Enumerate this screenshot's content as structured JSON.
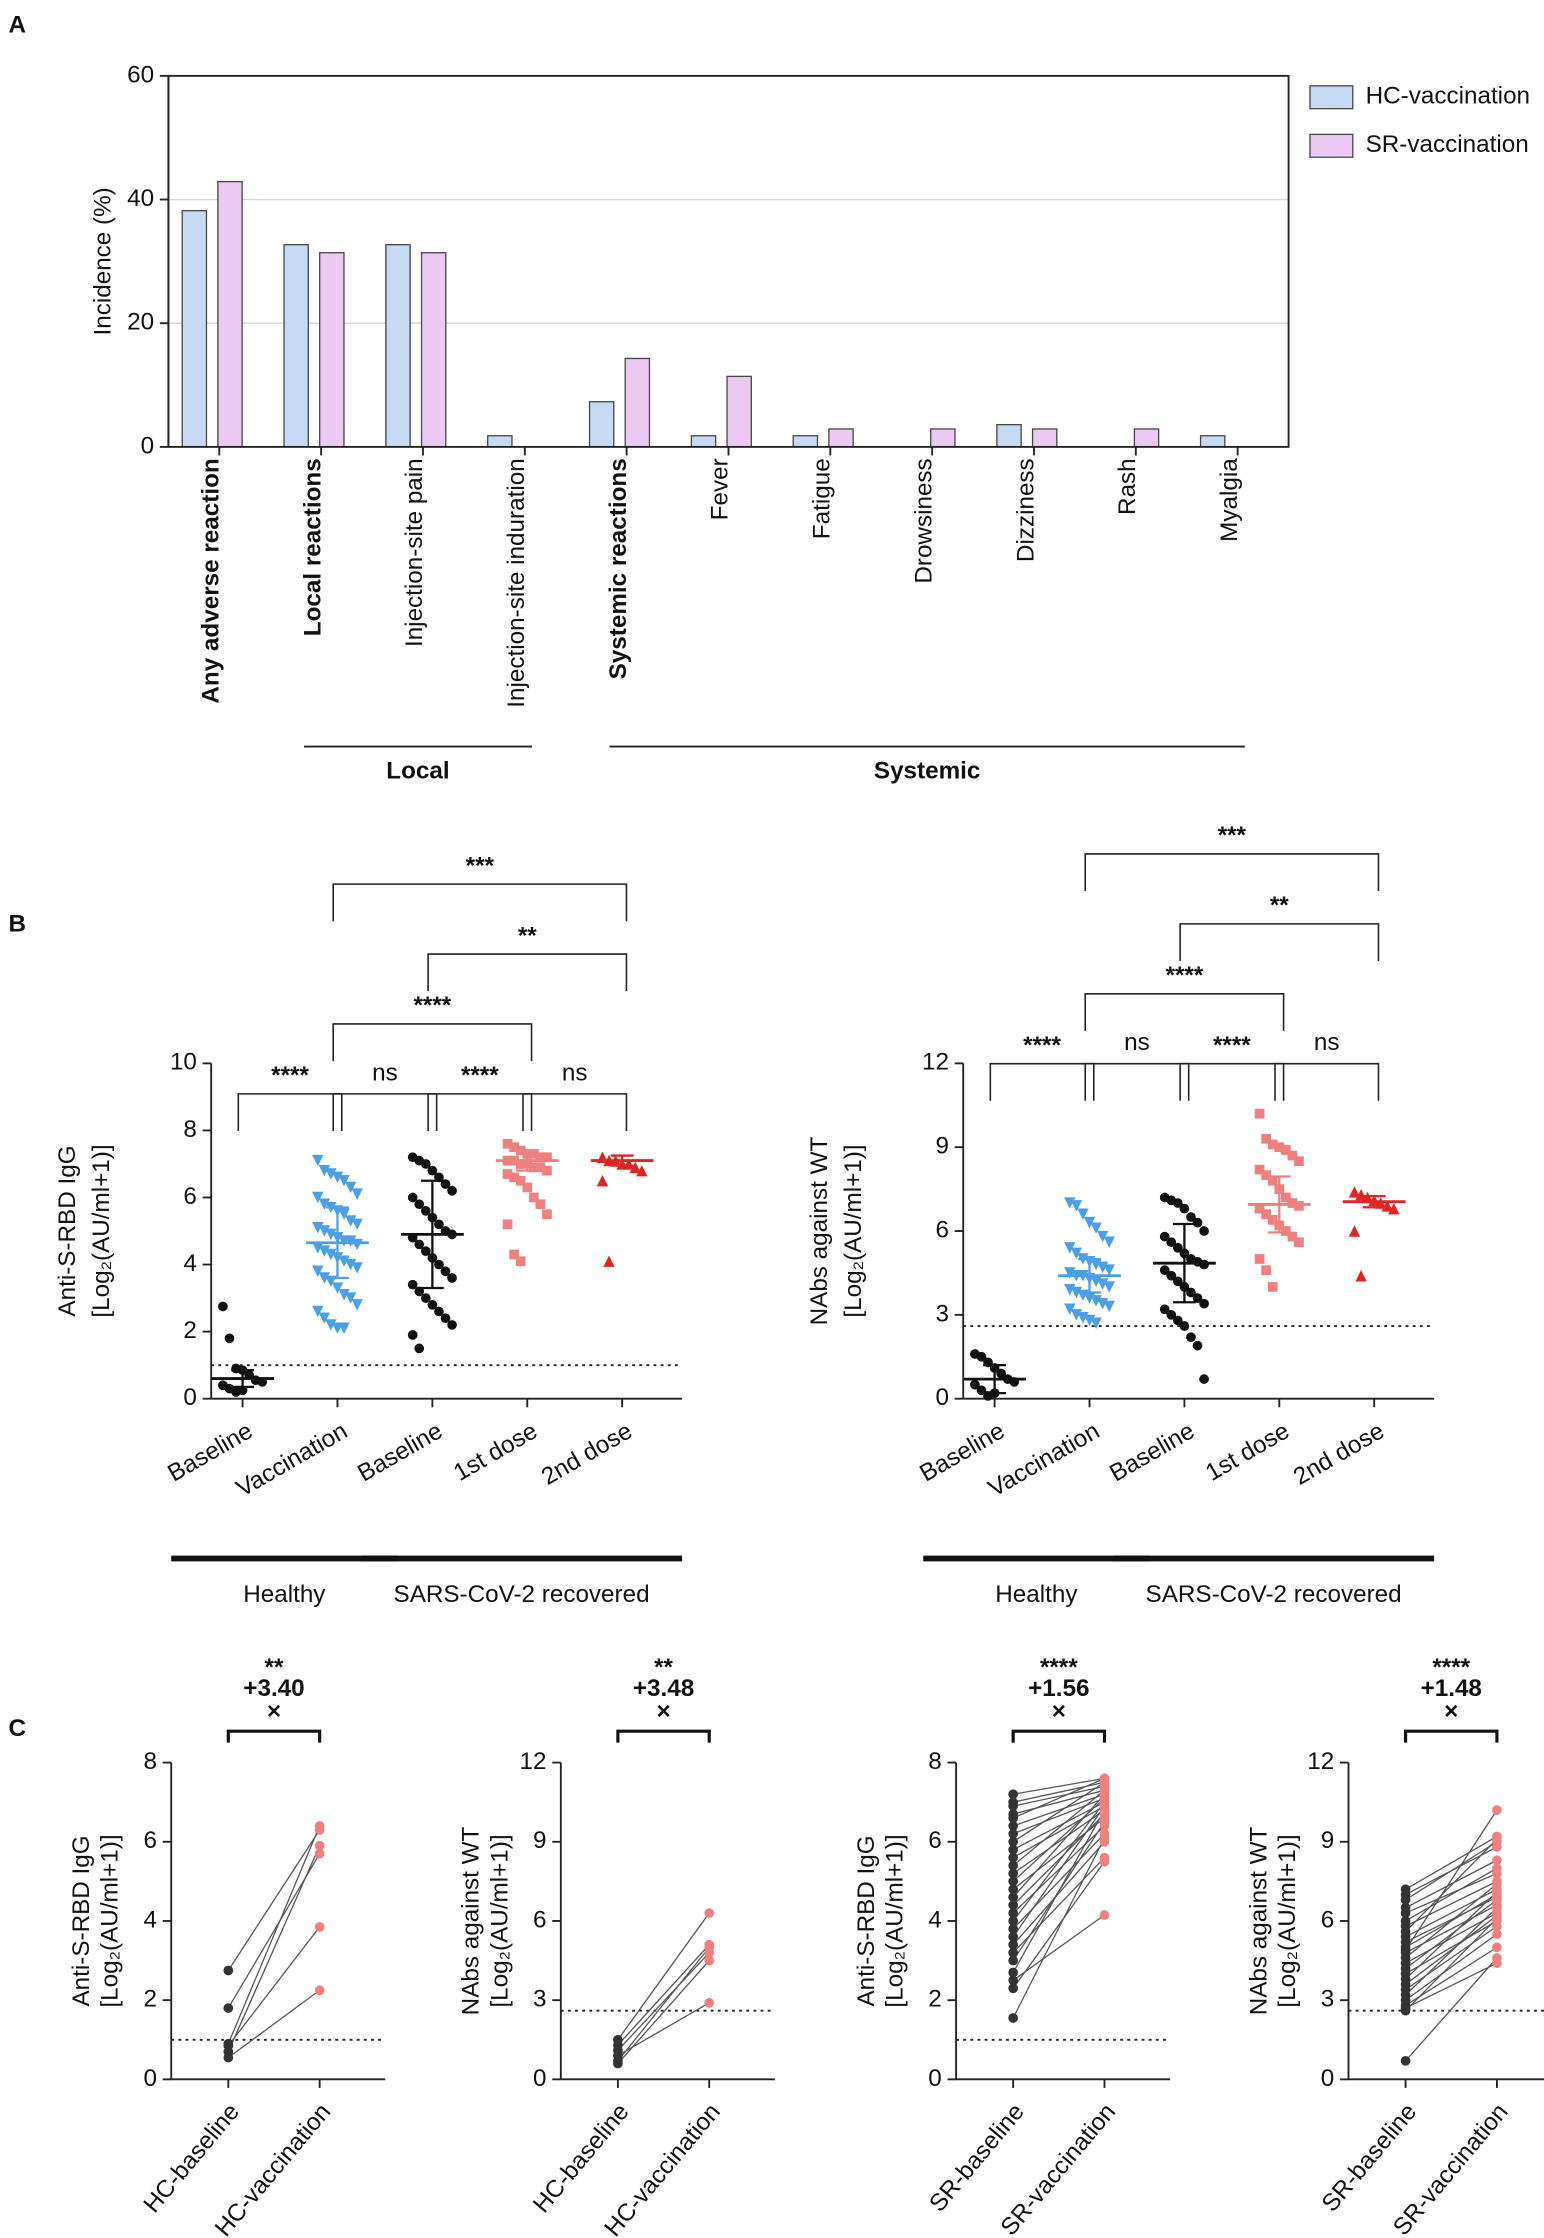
{
  "chart_data": [
    {
      "type": "bar",
      "panel": "A",
      "ylabel": "Incidence (%)",
      "categories": [
        "Any adverse reaction",
        "Local reactions",
        "Injection-site pain",
        "Injection-site induration",
        "Systemic reactions",
        "Fever",
        "Fatigue",
        "Drowsiness",
        "Dizziness",
        "Rash",
        "Myalgia"
      ],
      "category_bold": [
        true,
        true,
        false,
        false,
        true,
        false,
        false,
        false,
        false,
        false,
        false
      ],
      "groups": [
        {
          "label": "Local",
          "categories": [
            1,
            2,
            3
          ]
        },
        {
          "label": "Systemic",
          "categories": [
            4,
            5,
            6,
            7,
            8,
            9,
            10
          ]
        }
      ],
      "series": [
        {
          "name": "HC-vaccination",
          "color": "#c6dbf3",
          "values": [
            38.2,
            32.7,
            32.7,
            1.8,
            7.3,
            1.8,
            1.8,
            0,
            3.6,
            0,
            1.8
          ]
        },
        {
          "name": "SR-vaccination",
          "color": "#ecc9f2",
          "values": [
            42.9,
            31.4,
            31.4,
            0,
            14.3,
            11.4,
            2.9,
            2.9,
            2.9,
            2.9,
            0
          ]
        }
      ],
      "ylim": [
        0,
        60
      ],
      "yticks": [
        0,
        20,
        40,
        60
      ],
      "grid": true,
      "legend": "right"
    },
    {
      "type": "dot",
      "panel": "B",
      "ylabel": [
        "Anti-S-RBD IgG",
        "[Log₂(AU/ml+1)]"
      ],
      "categories": [
        "Baseline",
        "Vaccination",
        "Baseline",
        "1st dose",
        "2nd dose"
      ],
      "colors": [
        "#111111",
        "#4b9fe6",
        "#111111",
        "#f07f7f",
        "#e02424"
      ],
      "markers": [
        "circle",
        "triangle-down",
        "circle",
        "square",
        "triangle-up"
      ],
      "points": [
        [
          2.75,
          1.8,
          0.9,
          0.85,
          0.7,
          0.55,
          0.5,
          0.4,
          0.3,
          0.2,
          0.25
        ],
        [
          7.1,
          6.8,
          6.7,
          6.6,
          6.5,
          6.3,
          6.1,
          6.0,
          5.8,
          5.7,
          5.6,
          5.5,
          5.3,
          5.2,
          5.1,
          5.0,
          4.9,
          4.8,
          4.7,
          4.7,
          4.6,
          4.5,
          4.4,
          4.3,
          4.2,
          4.1,
          4.0,
          3.9,
          3.8,
          3.6,
          3.5,
          3.3,
          3.1,
          3.0,
          2.8,
          2.6,
          2.4,
          2.2,
          2.1,
          2.1
        ],
        [
          7.2,
          7.1,
          7.0,
          6.8,
          6.6,
          6.4,
          6.2,
          6.0,
          5.8,
          5.6,
          5.4,
          5.2,
          5.0,
          4.9,
          4.8,
          4.6,
          4.4,
          4.2,
          4.0,
          3.8,
          3.6,
          3.4,
          3.2,
          3.0,
          2.8,
          2.6,
          2.4,
          2.2,
          1.9,
          1.5
        ],
        [
          7.6,
          7.5,
          7.4,
          7.3,
          7.3,
          7.2,
          7.2,
          7.1,
          7.1,
          7.0,
          7.0,
          6.9,
          6.9,
          6.8,
          6.7,
          6.6,
          6.5,
          6.3,
          6.0,
          5.8,
          5.5,
          5.2,
          4.3,
          4.1
        ],
        [
          7.2,
          7.1,
          7.1,
          7.0,
          7.0,
          6.9,
          6.8,
          6.5,
          4.1
        ]
      ],
      "center": [
        0.6,
        4.65,
        4.9,
        7.1,
        7.1
      ],
      "spread": [
        0.25,
        1.05,
        1.6,
        0.3,
        0.15
      ],
      "reference_line": 1,
      "brackets": [
        {
          "from": 0,
          "to": 1,
          "label": "****"
        },
        {
          "from": 1,
          "to": 2,
          "label": "ns"
        },
        {
          "from": 2,
          "to": 3,
          "label": "****"
        },
        {
          "from": 3,
          "to": 4,
          "label": "ns"
        },
        {
          "from": 1,
          "to": 3,
          "label": "****"
        },
        {
          "from": 2,
          "to": 4,
          "label": "**"
        },
        {
          "from": 1,
          "to": 4,
          "label": "***"
        }
      ],
      "groups": [
        {
          "label": "Healthy",
          "categories": [
            0,
            1
          ]
        },
        {
          "label": "SARS-CoV-2 recovered",
          "categories": [
            2,
            3,
            4
          ]
        }
      ],
      "ylim": [
        0,
        10
      ],
      "yticks": [
        0,
        2,
        4,
        6,
        8,
        10
      ]
    },
    {
      "type": "dot",
      "ylabel": [
        "NAbs against WT",
        "[Log₂(AU/ml+1)]"
      ],
      "categories": [
        "Baseline",
        "Vaccination",
        "Baseline",
        "1st dose",
        "2nd dose"
      ],
      "colors": [
        "#111111",
        "#4b9fe6",
        "#111111",
        "#f07f7f",
        "#e02424"
      ],
      "markers": [
        "circle",
        "triangle-down",
        "circle",
        "square",
        "triangle-up"
      ],
      "points": [
        [
          1.6,
          1.5,
          1.3,
          1.1,
          0.9,
          0.7,
          0.6,
          0.5,
          0.3,
          0.1,
          0.2
        ],
        [
          7.0,
          6.9,
          6.6,
          6.3,
          6.1,
          5.8,
          5.6,
          5.4,
          5.2,
          5.0,
          4.9,
          4.8,
          4.7,
          4.6,
          4.5,
          4.4,
          4.4,
          4.3,
          4.2,
          4.1,
          4.0,
          3.9,
          3.8,
          3.7,
          3.6,
          3.5,
          3.4,
          3.3,
          3.2,
          3.0,
          2.9,
          2.8,
          2.7
        ],
        [
          7.2,
          7.1,
          7.0,
          6.8,
          6.5,
          6.3,
          6.0,
          5.8,
          5.6,
          5.4,
          5.2,
          5.0,
          4.9,
          4.8,
          4.6,
          4.4,
          4.2,
          4.0,
          3.8,
          3.6,
          3.4,
          3.2,
          3.0,
          2.8,
          2.6,
          2.2,
          1.9,
          0.7
        ],
        [
          10.2,
          9.3,
          9.1,
          9.0,
          8.9,
          8.7,
          8.5,
          8.2,
          8.0,
          7.8,
          7.5,
          7.2,
          7.0,
          6.9,
          6.8,
          6.6,
          6.4,
          6.2,
          6.0,
          5.8,
          5.6,
          5.0,
          4.6,
          4.0
        ],
        [
          7.4,
          7.3,
          7.2,
          7.1,
          7.0,
          6.9,
          6.8,
          6.0,
          4.4
        ]
      ],
      "center": [
        0.7,
        4.4,
        4.85,
        6.95,
        7.05
      ],
      "spread": [
        0.5,
        0.6,
        1.4,
        1.0,
        0.2
      ],
      "reference_line": 2.6,
      "brackets": [
        {
          "from": 0,
          "to": 1,
          "label": "****"
        },
        {
          "from": 1,
          "to": 2,
          "label": "ns"
        },
        {
          "from": 2,
          "to": 3,
          "label": "****"
        },
        {
          "from": 3,
          "to": 4,
          "label": "ns"
        },
        {
          "from": 1,
          "to": 3,
          "label": "****"
        },
        {
          "from": 2,
          "to": 4,
          "label": "**"
        },
        {
          "from": 1,
          "to": 4,
          "label": "***"
        }
      ],
      "groups": [
        {
          "label": "Healthy",
          "categories": [
            0,
            1
          ]
        },
        {
          "label": "SARS-CoV-2 recovered",
          "categories": [
            2,
            3,
            4
          ]
        }
      ],
      "ylim": [
        0,
        12
      ],
      "yticks": [
        0,
        3,
        6,
        9,
        12
      ]
    },
    {
      "type": "paired",
      "panel": "C",
      "ylabel": [
        "Anti-S-RBD IgG",
        "[Log₂(AU/ml+1)]"
      ],
      "categories": [
        "HC-baseline",
        "HC-vaccination"
      ],
      "annotation": [
        "**",
        "+3.40",
        "×"
      ],
      "before_color": "#333333",
      "after_color": "#f07f7f",
      "before": [
        2.75,
        1.8,
        0.9,
        0.85,
        0.7,
        0.55
      ],
      "after": [
        6.3,
        5.7,
        6.4,
        3.85,
        5.9,
        2.25
      ],
      "reference_line": 1,
      "ylim": [
        0,
        8
      ],
      "yticks": [
        0,
        2,
        4,
        6,
        8
      ]
    },
    {
      "type": "paired",
      "ylabel": [
        "NAbs against WT",
        "[Log₂(AU/ml+1)]"
      ],
      "categories": [
        "HC-baseline",
        "HC-vaccination"
      ],
      "annotation": [
        "**",
        "+3.48",
        "×"
      ],
      "before_color": "#333333",
      "after_color": "#f07f7f",
      "before": [
        1.5,
        1.3,
        1.1,
        0.9,
        0.7,
        0.6
      ],
      "after": [
        6.3,
        5.1,
        4.8,
        2.9,
        5.0,
        4.5
      ],
      "reference_line": 2.6,
      "ylim": [
        0,
        12
      ],
      "yticks": [
        0,
        3,
        6,
        9,
        12
      ]
    },
    {
      "type": "paired",
      "ylabel": [
        "Anti-S-RBD IgG",
        "[Log₂(AU/ml+1)]"
      ],
      "categories": [
        "SR-baseline",
        "SR-vaccination"
      ],
      "annotation": [
        "****",
        "+1.56",
        "×"
      ],
      "before_color": "#333333",
      "after_color": "#f07f7f",
      "before": [
        7.2,
        7.0,
        6.9,
        6.7,
        6.6,
        6.4,
        6.2,
        6.0,
        5.8,
        5.6,
        5.4,
        5.2,
        5.0,
        4.8,
        4.6,
        4.4,
        4.2,
        4.0,
        3.8,
        3.6,
        3.4,
        3.2,
        3.0,
        2.7,
        2.3,
        2.5,
        1.55
      ],
      "after": [
        7.6,
        7.5,
        7.4,
        7.3,
        7.6,
        7.2,
        7.1,
        7.5,
        7.0,
        6.9,
        7.3,
        6.8,
        7.1,
        6.6,
        7.2,
        6.7,
        6.4,
        7.0,
        6.2,
        6.9,
        6.0,
        5.6,
        6.5,
        6.8,
        5.5,
        4.15,
        6.1
      ],
      "reference_line": 1,
      "ylim": [
        0,
        8
      ],
      "yticks": [
        0,
        2,
        4,
        6,
        8
      ]
    },
    {
      "type": "paired",
      "ylabel": [
        "NAbs against WT",
        "[Log₂(AU/ml+1)]"
      ],
      "categories": [
        "SR-baseline",
        "SR-vaccination"
      ],
      "annotation": [
        "****",
        "+1.48",
        "×"
      ],
      "before_color": "#333333",
      "after_color": "#f07f7f",
      "before": [
        7.2,
        7.0,
        6.8,
        6.5,
        6.3,
        6.0,
        5.8,
        5.6,
        5.4,
        5.2,
        5.0,
        4.9,
        4.8,
        4.6,
        4.4,
        4.2,
        4.0,
        3.8,
        3.6,
        3.4,
        3.2,
        3.0,
        2.8,
        2.7,
        2.6,
        0.7
      ],
      "after": [
        9.2,
        8.8,
        9.0,
        8.3,
        7.8,
        8.0,
        7.5,
        9.1,
        7.2,
        6.9,
        7.0,
        10.2,
        6.6,
        7.4,
        6.3,
        6.8,
        6.0,
        7.1,
        6.2,
        5.8,
        6.5,
        5.5,
        5.0,
        4.4,
        6.1,
        4.6
      ],
      "reference_line": 2.6,
      "ylim": [
        0,
        12
      ],
      "yticks": [
        0,
        3,
        6,
        9,
        12
      ]
    }
  ]
}
